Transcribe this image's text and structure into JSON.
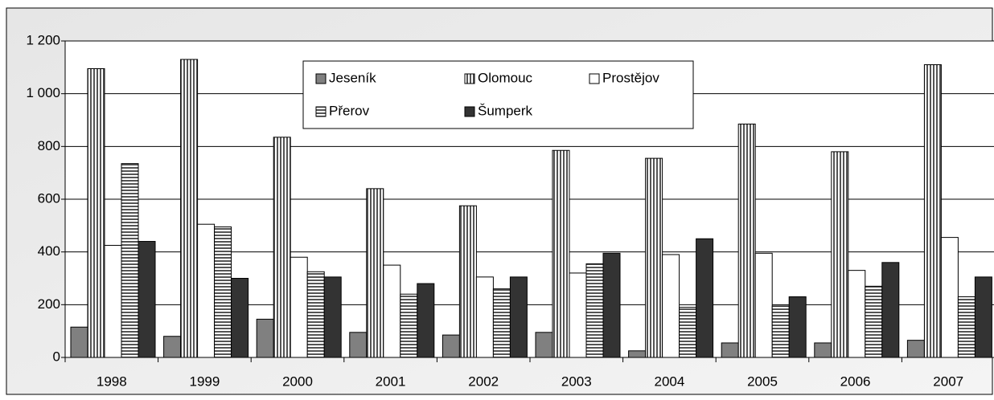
{
  "chart_data": {
    "type": "bar",
    "categories": [
      "1998",
      "1999",
      "2000",
      "2001",
      "2002",
      "2003",
      "2004",
      "2005",
      "2006",
      "2007"
    ],
    "series": [
      {
        "name": "Jeseník",
        "color": "#808080",
        "pattern": "solid",
        "values": [
          115,
          80,
          145,
          95,
          85,
          95,
          25,
          55,
          55,
          65
        ]
      },
      {
        "name": "Olomouc",
        "color": "#808080",
        "pattern": "vertical",
        "values": [
          1095,
          1130,
          835,
          640,
          575,
          785,
          755,
          885,
          780,
          1110
        ]
      },
      {
        "name": "Prostějov",
        "color": "#ffffff",
        "pattern": "solid",
        "values": [
          425,
          505,
          380,
          350,
          305,
          320,
          390,
          395,
          330,
          455
        ]
      },
      {
        "name": "Přerov",
        "color": "#808080",
        "pattern": "horizontal",
        "values": [
          735,
          495,
          325,
          240,
          260,
          355,
          190,
          195,
          270,
          230
        ]
      },
      {
        "name": "Šumperk",
        "color": "#333333",
        "pattern": "solid",
        "values": [
          440,
          300,
          305,
          280,
          305,
          395,
          450,
          230,
          360,
          305
        ]
      }
    ],
    "ylim": [
      0,
      1200
    ],
    "yticks": [
      0,
      200,
      400,
      600,
      800,
      {
        "value": 1000,
        "label": "1 000"
      },
      {
        "value": 1200,
        "label": "1 200"
      }
    ],
    "grid": true,
    "legend": "top"
  }
}
